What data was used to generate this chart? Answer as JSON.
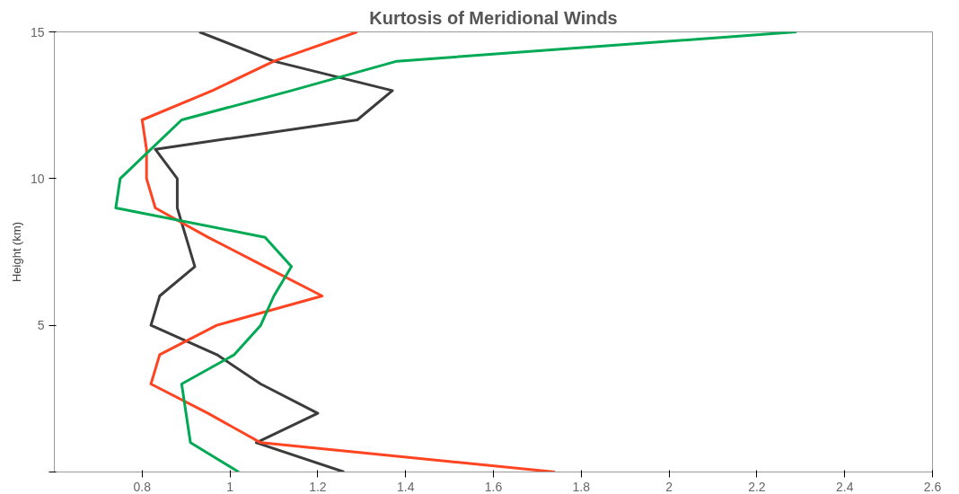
{
  "chart_data": {
    "type": "line",
    "title": "Kurtosis of Meridional Winds",
    "ylabel": "Height (km)",
    "xlim": [
      0.6,
      2.6
    ],
    "xticks": [
      0.8,
      1,
      1.2,
      1.4,
      1.6,
      1.8,
      2,
      2.2,
      2.4,
      2.6
    ],
    "ylim": [
      0,
      15
    ],
    "yticks": [
      {
        "value": 0,
        "label": null
      },
      5,
      10,
      15
    ],
    "grid": false,
    "line_style": "solid",
    "marker": "none",
    "series": [
      {
        "color": "#3c3c3c",
        "x": [
          1.26,
          1.06,
          1.2,
          1.07,
          0.97,
          0.82,
          0.84,
          0.92,
          0.9,
          0.88,
          0.88,
          0.83,
          1.29,
          1.37,
          1.1,
          0.93
        ],
        "values": [
          0,
          1,
          2,
          3,
          4,
          5,
          6,
          7,
          8,
          9,
          10,
          11,
          12,
          13,
          14,
          15
        ]
      },
      {
        "color": "#ff4422",
        "x": [
          1.74,
          1.07,
          0.95,
          0.82,
          0.84,
          0.97,
          1.21,
          1.08,
          0.95,
          0.83,
          0.81,
          0.81,
          0.8,
          0.96,
          1.1,
          1.29
        ],
        "values": [
          0,
          1,
          2,
          3,
          4,
          5,
          6,
          7,
          8,
          9,
          10,
          11,
          12,
          13,
          14,
          15
        ]
      },
      {
        "color": "#00aa55",
        "x": [
          1.02,
          0.91,
          0.9,
          0.89,
          1.01,
          1.07,
          1.1,
          1.14,
          1.08,
          0.74,
          0.75,
          0.82,
          0.89,
          1.14,
          1.38,
          2.29
        ],
        "values": [
          0,
          1,
          2,
          3,
          4,
          5,
          6,
          7,
          8,
          9,
          10,
          11,
          12,
          13,
          14,
          15
        ]
      }
    ]
  }
}
